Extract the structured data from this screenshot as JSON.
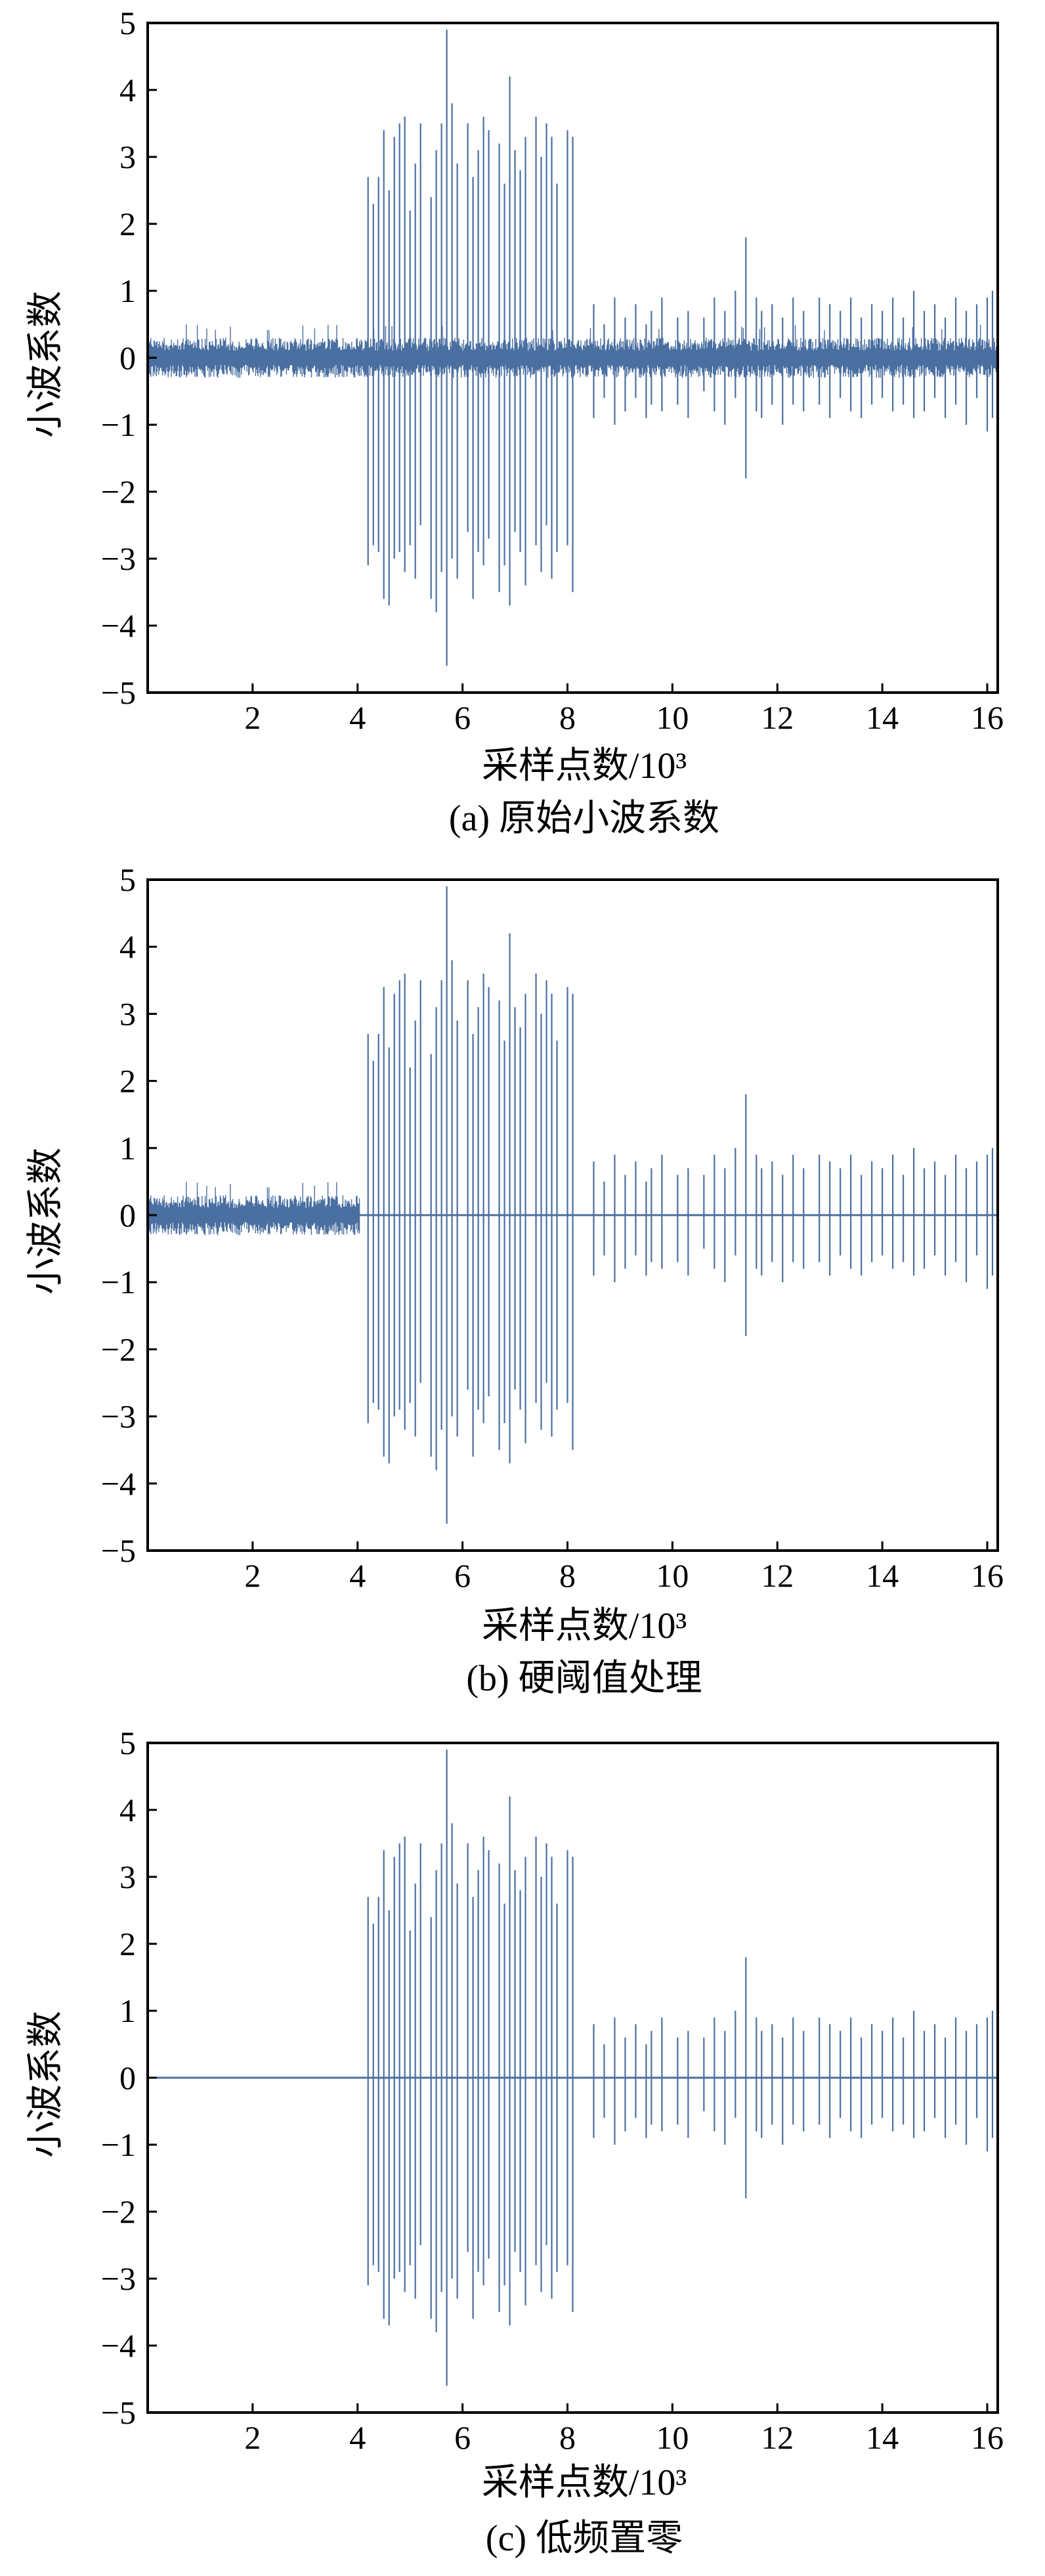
{
  "series_color": "#4a6fa1",
  "chart_data": [
    {
      "type": "line",
      "caption": "(a) 原始小波系数",
      "xlabel": "采样点数/10³",
      "ylabel": "小波系数",
      "xlim": [
        0,
        16.2
      ],
      "ylim": [
        -5,
        5
      ],
      "x_ticks": [
        2,
        4,
        6,
        8,
        10,
        12,
        14,
        16
      ],
      "y_ticks": [
        -5,
        -4,
        -3,
        -2,
        -1,
        0,
        1,
        2,
        3,
        4,
        5
      ],
      "grid": false,
      "noise": {
        "x_range": [
          0,
          16.2
        ],
        "amplitude": 0.3,
        "peak": 0.5
      },
      "spikes": [
        [
          4.2,
          2.7,
          -3.1
        ],
        [
          4.3,
          2.3,
          -2.8
        ],
        [
          4.4,
          2.7,
          -2.9
        ],
        [
          4.5,
          3.4,
          -3.6
        ],
        [
          4.6,
          2.5,
          -3.7
        ],
        [
          4.7,
          3.3,
          -3.0
        ],
        [
          4.8,
          3.5,
          -2.9
        ],
        [
          4.9,
          3.6,
          -3.2
        ],
        [
          5.0,
          2.2,
          -2.8
        ],
        [
          5.1,
          2.9,
          -3.3
        ],
        [
          5.2,
          3.5,
          -2.5
        ],
        [
          5.4,
          2.4,
          -3.6
        ],
        [
          5.5,
          3.1,
          -3.8
        ],
        [
          5.6,
          3.5,
          -3.2
        ],
        [
          5.7,
          4.9,
          -4.6
        ],
        [
          5.8,
          3.8,
          -3.0
        ],
        [
          5.9,
          2.9,
          -3.3
        ],
        [
          6.1,
          3.5,
          -2.6
        ],
        [
          6.2,
          2.7,
          -3.6
        ],
        [
          6.3,
          3.1,
          -2.9
        ],
        [
          6.4,
          3.6,
          -3.1
        ],
        [
          6.5,
          3.4,
          -2.7
        ],
        [
          6.7,
          3.2,
          -3.5
        ],
        [
          6.8,
          2.6,
          -3.1
        ],
        [
          6.9,
          4.2,
          -3.7
        ],
        [
          7.0,
          3.1,
          -2.6
        ],
        [
          7.1,
          2.8,
          -2.9
        ],
        [
          7.2,
          3.3,
          -3.4
        ],
        [
          7.4,
          3.6,
          -2.8
        ],
        [
          7.5,
          3.0,
          -3.2
        ],
        [
          7.6,
          3.5,
          -2.5
        ],
        [
          7.7,
          3.3,
          -3.3
        ],
        [
          7.8,
          2.6,
          -2.9
        ],
        [
          8.0,
          3.4,
          -2.8
        ],
        [
          8.1,
          3.3,
          -3.5
        ],
        [
          8.5,
          0.8,
          -0.9
        ],
        [
          8.7,
          0.5,
          -0.6
        ],
        [
          8.9,
          0.9,
          -1.0
        ],
        [
          9.1,
          0.6,
          -0.8
        ],
        [
          9.3,
          0.8,
          -0.6
        ],
        [
          9.5,
          0.5,
          -0.9
        ],
        [
          9.6,
          0.7,
          -0.7
        ],
        [
          9.8,
          0.9,
          -0.8
        ],
        [
          10.1,
          0.6,
          -0.7
        ],
        [
          10.3,
          0.7,
          -0.9
        ],
        [
          10.6,
          0.6,
          -0.5
        ],
        [
          10.8,
          0.9,
          -0.8
        ],
        [
          11.0,
          0.7,
          -1.0
        ],
        [
          11.2,
          1.0,
          -0.6
        ],
        [
          11.4,
          1.8,
          -1.8
        ],
        [
          11.6,
          0.9,
          -0.8
        ],
        [
          11.7,
          0.7,
          -0.9
        ],
        [
          11.9,
          0.8,
          -0.7
        ],
        [
          12.1,
          0.6,
          -1.0
        ],
        [
          12.3,
          0.9,
          -0.7
        ],
        [
          12.5,
          0.7,
          -0.8
        ],
        [
          12.8,
          0.9,
          -0.7
        ],
        [
          13.0,
          0.8,
          -0.9
        ],
        [
          13.2,
          0.7,
          -0.6
        ],
        [
          13.4,
          0.9,
          -0.8
        ],
        [
          13.6,
          0.6,
          -0.9
        ],
        [
          13.8,
          0.8,
          -0.7
        ],
        [
          14.0,
          0.7,
          -0.6
        ],
        [
          14.2,
          0.9,
          -0.8
        ],
        [
          14.4,
          0.6,
          -0.7
        ],
        [
          14.6,
          1.0,
          -0.9
        ],
        [
          14.8,
          0.7,
          -0.8
        ],
        [
          15.0,
          0.8,
          -0.6
        ],
        [
          15.2,
          0.6,
          -0.9
        ],
        [
          15.4,
          0.9,
          -0.7
        ],
        [
          15.6,
          0.7,
          -1.0
        ],
        [
          15.8,
          0.8,
          -0.6
        ],
        [
          16.0,
          0.9,
          -1.1
        ],
        [
          16.1,
          1.0,
          -0.9
        ]
      ]
    },
    {
      "type": "line",
      "caption": "(b) 硬阈值处理",
      "xlabel": "采样点数/10³",
      "ylabel": "小波系数",
      "xlim": [
        0,
        16.2
      ],
      "ylim": [
        -5,
        5
      ],
      "x_ticks": [
        2,
        4,
        6,
        8,
        10,
        12,
        14,
        16
      ],
      "y_ticks": [
        -5,
        -4,
        -3,
        -2,
        -1,
        0,
        1,
        2,
        3,
        4,
        5
      ],
      "grid": false,
      "noise": {
        "x_range": [
          0,
          4.05
        ],
        "amplitude": 0.3,
        "peak": 0.5
      },
      "spikes": [
        [
          4.2,
          2.7,
          -3.1
        ],
        [
          4.3,
          2.3,
          -2.8
        ],
        [
          4.4,
          2.7,
          -2.9
        ],
        [
          4.5,
          3.4,
          -3.6
        ],
        [
          4.6,
          2.5,
          -3.7
        ],
        [
          4.7,
          3.3,
          -3.0
        ],
        [
          4.8,
          3.5,
          -2.9
        ],
        [
          4.9,
          3.6,
          -3.2
        ],
        [
          5.0,
          2.2,
          -2.8
        ],
        [
          5.1,
          2.9,
          -3.3
        ],
        [
          5.2,
          3.5,
          -2.5
        ],
        [
          5.4,
          2.4,
          -3.6
        ],
        [
          5.5,
          3.1,
          -3.8
        ],
        [
          5.6,
          3.5,
          -3.2
        ],
        [
          5.7,
          4.9,
          -4.6
        ],
        [
          5.8,
          3.8,
          -3.0
        ],
        [
          5.9,
          2.9,
          -3.3
        ],
        [
          6.1,
          3.5,
          -2.6
        ],
        [
          6.2,
          2.7,
          -3.6
        ],
        [
          6.3,
          3.1,
          -2.9
        ],
        [
          6.4,
          3.6,
          -3.1
        ],
        [
          6.5,
          3.4,
          -2.7
        ],
        [
          6.7,
          3.2,
          -3.5
        ],
        [
          6.8,
          2.6,
          -3.1
        ],
        [
          6.9,
          4.2,
          -3.7
        ],
        [
          7.0,
          3.1,
          -2.6
        ],
        [
          7.1,
          2.8,
          -2.9
        ],
        [
          7.2,
          3.3,
          -3.4
        ],
        [
          7.4,
          3.6,
          -2.8
        ],
        [
          7.5,
          3.0,
          -3.2
        ],
        [
          7.6,
          3.5,
          -2.5
        ],
        [
          7.7,
          3.3,
          -3.3
        ],
        [
          7.8,
          2.6,
          -2.9
        ],
        [
          8.0,
          3.4,
          -2.8
        ],
        [
          8.1,
          3.3,
          -3.5
        ],
        [
          8.5,
          0.8,
          -0.9
        ],
        [
          8.7,
          0.5,
          -0.6
        ],
        [
          8.9,
          0.9,
          -1.0
        ],
        [
          9.1,
          0.6,
          -0.8
        ],
        [
          9.3,
          0.8,
          -0.6
        ],
        [
          9.5,
          0.5,
          -0.9
        ],
        [
          9.6,
          0.7,
          -0.7
        ],
        [
          9.8,
          0.9,
          -0.8
        ],
        [
          10.1,
          0.6,
          -0.7
        ],
        [
          10.3,
          0.7,
          -0.9
        ],
        [
          10.6,
          0.6,
          -0.5
        ],
        [
          10.8,
          0.9,
          -0.8
        ],
        [
          11.0,
          0.7,
          -1.0
        ],
        [
          11.2,
          1.0,
          -0.6
        ],
        [
          11.4,
          1.8,
          -1.8
        ],
        [
          11.6,
          0.9,
          -0.8
        ],
        [
          11.7,
          0.7,
          -0.9
        ],
        [
          11.9,
          0.8,
          -0.7
        ],
        [
          12.1,
          0.6,
          -1.0
        ],
        [
          12.3,
          0.9,
          -0.7
        ],
        [
          12.5,
          0.7,
          -0.8
        ],
        [
          12.8,
          0.9,
          -0.7
        ],
        [
          13.0,
          0.8,
          -0.9
        ],
        [
          13.2,
          0.7,
          -0.6
        ],
        [
          13.4,
          0.9,
          -0.8
        ],
        [
          13.6,
          0.6,
          -0.9
        ],
        [
          13.8,
          0.8,
          -0.7
        ],
        [
          14.0,
          0.7,
          -0.6
        ],
        [
          14.2,
          0.9,
          -0.8
        ],
        [
          14.4,
          0.6,
          -0.7
        ],
        [
          14.6,
          1.0,
          -0.9
        ],
        [
          14.8,
          0.7,
          -0.8
        ],
        [
          15.0,
          0.8,
          -0.6
        ],
        [
          15.2,
          0.6,
          -0.9
        ],
        [
          15.4,
          0.9,
          -0.7
        ],
        [
          15.6,
          0.7,
          -1.0
        ],
        [
          15.8,
          0.8,
          -0.6
        ],
        [
          16.0,
          0.9,
          -1.1
        ],
        [
          16.1,
          1.0,
          -0.9
        ]
      ]
    },
    {
      "type": "line",
      "caption": "(c) 低频置零",
      "xlabel": "采样点数/10³",
      "ylabel": "小波系数",
      "xlim": [
        0,
        16.2
      ],
      "ylim": [
        -5,
        5
      ],
      "x_ticks": [
        2,
        4,
        6,
        8,
        10,
        12,
        14,
        16
      ],
      "y_ticks": [
        -5,
        -4,
        -3,
        -2,
        -1,
        0,
        1,
        2,
        3,
        4,
        5
      ],
      "grid": false,
      "noise": null,
      "spikes": [
        [
          4.2,
          2.7,
          -3.1
        ],
        [
          4.3,
          2.3,
          -2.8
        ],
        [
          4.4,
          2.7,
          -2.9
        ],
        [
          4.5,
          3.4,
          -3.6
        ],
        [
          4.6,
          2.5,
          -3.7
        ],
        [
          4.7,
          3.3,
          -3.0
        ],
        [
          4.8,
          3.5,
          -2.9
        ],
        [
          4.9,
          3.6,
          -3.2
        ],
        [
          5.0,
          2.2,
          -2.8
        ],
        [
          5.1,
          2.9,
          -3.3
        ],
        [
          5.2,
          3.5,
          -2.5
        ],
        [
          5.4,
          2.4,
          -3.6
        ],
        [
          5.5,
          3.1,
          -3.8
        ],
        [
          5.6,
          3.5,
          -3.2
        ],
        [
          5.7,
          4.9,
          -4.6
        ],
        [
          5.8,
          3.8,
          -3.0
        ],
        [
          5.9,
          2.9,
          -3.3
        ],
        [
          6.1,
          3.5,
          -2.6
        ],
        [
          6.2,
          2.7,
          -3.6
        ],
        [
          6.3,
          3.1,
          -2.9
        ],
        [
          6.4,
          3.6,
          -3.1
        ],
        [
          6.5,
          3.4,
          -2.7
        ],
        [
          6.7,
          3.2,
          -3.5
        ],
        [
          6.8,
          2.6,
          -3.1
        ],
        [
          6.9,
          4.2,
          -3.7
        ],
        [
          7.0,
          3.1,
          -2.6
        ],
        [
          7.1,
          2.8,
          -2.9
        ],
        [
          7.2,
          3.3,
          -3.4
        ],
        [
          7.4,
          3.6,
          -2.8
        ],
        [
          7.5,
          3.0,
          -3.2
        ],
        [
          7.6,
          3.5,
          -2.5
        ],
        [
          7.7,
          3.3,
          -3.3
        ],
        [
          7.8,
          2.6,
          -2.9
        ],
        [
          8.0,
          3.4,
          -2.8
        ],
        [
          8.1,
          3.3,
          -3.5
        ],
        [
          8.5,
          0.8,
          -0.9
        ],
        [
          8.7,
          0.5,
          -0.6
        ],
        [
          8.9,
          0.9,
          -1.0
        ],
        [
          9.1,
          0.6,
          -0.8
        ],
        [
          9.3,
          0.8,
          -0.6
        ],
        [
          9.5,
          0.5,
          -0.9
        ],
        [
          9.6,
          0.7,
          -0.7
        ],
        [
          9.8,
          0.9,
          -0.8
        ],
        [
          10.1,
          0.6,
          -0.7
        ],
        [
          10.3,
          0.7,
          -0.9
        ],
        [
          10.6,
          0.6,
          -0.5
        ],
        [
          10.8,
          0.9,
          -0.8
        ],
        [
          11.0,
          0.7,
          -1.0
        ],
        [
          11.2,
          1.0,
          -0.6
        ],
        [
          11.4,
          1.8,
          -1.8
        ],
        [
          11.6,
          0.9,
          -0.8
        ],
        [
          11.7,
          0.7,
          -0.9
        ],
        [
          11.9,
          0.8,
          -0.7
        ],
        [
          12.1,
          0.6,
          -1.0
        ],
        [
          12.3,
          0.9,
          -0.7
        ],
        [
          12.5,
          0.7,
          -0.8
        ],
        [
          12.8,
          0.9,
          -0.7
        ],
        [
          13.0,
          0.8,
          -0.9
        ],
        [
          13.2,
          0.7,
          -0.6
        ],
        [
          13.4,
          0.9,
          -0.8
        ],
        [
          13.6,
          0.6,
          -0.9
        ],
        [
          13.8,
          0.8,
          -0.7
        ],
        [
          14.0,
          0.7,
          -0.6
        ],
        [
          14.2,
          0.9,
          -0.8
        ],
        [
          14.4,
          0.6,
          -0.7
        ],
        [
          14.6,
          1.0,
          -0.9
        ],
        [
          14.8,
          0.7,
          -0.8
        ],
        [
          15.0,
          0.8,
          -0.6
        ],
        [
          15.2,
          0.6,
          -0.9
        ],
        [
          15.4,
          0.9,
          -0.7
        ],
        [
          15.6,
          0.7,
          -1.0
        ],
        [
          15.8,
          0.8,
          -0.6
        ],
        [
          16.0,
          0.9,
          -1.1
        ],
        [
          16.1,
          1.0,
          -0.9
        ]
      ]
    }
  ]
}
